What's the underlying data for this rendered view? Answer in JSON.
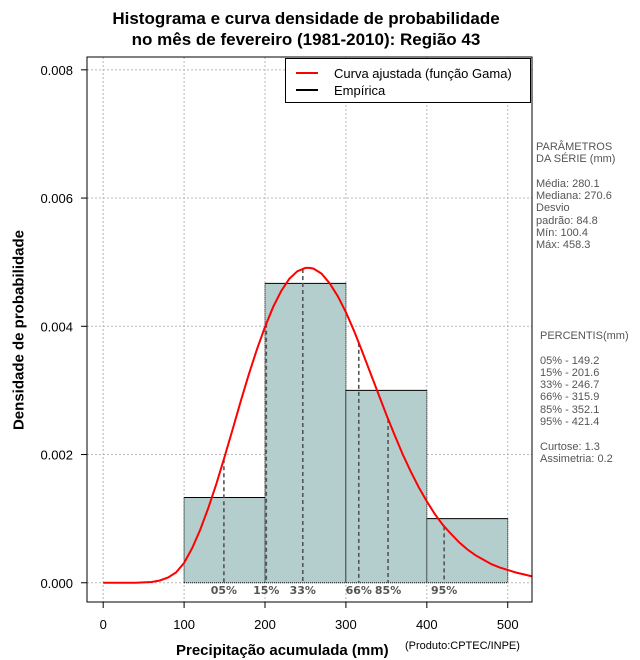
{
  "chart_data": {
    "type": "histogram",
    "title": [
      "Histograma e curva densidade de probabilidade",
      "no mês de fevereiro (1981-2010): Região 43"
    ],
    "xlabel": "Precipitação acumulada (mm)",
    "ylabel": "Densidade de probabilidade",
    "credit": "(Produto:CPTEC/INPE)",
    "xlim": [
      -20,
      530
    ],
    "ylim": [
      -0.0003,
      0.0082
    ],
    "xticks": [
      0,
      100,
      200,
      300,
      400,
      500
    ],
    "xtick_labels": [
      "0",
      "100",
      "200",
      "300",
      "400",
      "500"
    ],
    "yticks": [
      0,
      0.002,
      0.004,
      0.006,
      0.008
    ],
    "ytick_labels": [
      "0.000",
      "0.002",
      "0.004",
      "0.006",
      "0.008"
    ],
    "grid": true,
    "bins": [
      {
        "x0": 100,
        "x1": 200,
        "density": 0.00133
      },
      {
        "x0": 200,
        "x1": 300,
        "density": 0.00467
      },
      {
        "x0": 300,
        "x1": 400,
        "density": 0.003
      },
      {
        "x0": 400,
        "x1": 500,
        "density": 0.001
      }
    ],
    "bar_color": "#b4cecd",
    "curve": {
      "name": "Curva ajustada (função Gama)",
      "color": "#ff0000",
      "points": [
        [
          0,
          0
        ],
        [
          40,
          5e-07
        ],
        [
          60,
          1.2e-05
        ],
        [
          70,
          3.5e-05
        ],
        [
          80,
          8e-05
        ],
        [
          90,
          0.00016
        ],
        [
          100,
          0.00031
        ],
        [
          110,
          0.00054
        ],
        [
          120,
          0.00083
        ],
        [
          130,
          0.00117
        ],
        [
          140,
          0.00155
        ],
        [
          150,
          0.00196
        ],
        [
          160,
          0.00239
        ],
        [
          170,
          0.00283
        ],
        [
          180,
          0.00325
        ],
        [
          190,
          0.00364
        ],
        [
          200,
          0.00399
        ],
        [
          210,
          0.0043
        ],
        [
          220,
          0.00455
        ],
        [
          230,
          0.00474
        ],
        [
          240,
          0.00486
        ],
        [
          250,
          0.00491
        ],
        [
          255,
          0.00491
        ],
        [
          260,
          0.0049
        ],
        [
          270,
          0.00482
        ],
        [
          280,
          0.00467
        ],
        [
          290,
          0.00447
        ],
        [
          300,
          0.00422
        ],
        [
          310,
          0.00393
        ],
        [
          320,
          0.00361
        ],
        [
          330,
          0.00328
        ],
        [
          340,
          0.00295
        ],
        [
          350,
          0.00262
        ],
        [
          360,
          0.00231
        ],
        [
          370,
          0.00201
        ],
        [
          380,
          0.00174
        ],
        [
          390,
          0.00149
        ],
        [
          400,
          0.00127
        ],
        [
          410,
          0.00107
        ],
        [
          420,
          0.0009
        ],
        [
          430,
          0.00076
        ],
        [
          440,
          0.00063
        ],
        [
          450,
          0.00052
        ],
        [
          460,
          0.00043
        ],
        [
          470,
          0.00036
        ],
        [
          480,
          0.00029
        ],
        [
          490,
          0.00024
        ],
        [
          500,
          0.0002
        ],
        [
          510,
          0.00016
        ],
        [
          520,
          0.00013
        ],
        [
          530,
          0.0001
        ]
      ]
    },
    "empirical": {
      "name": "Empírica",
      "color": "#000000"
    },
    "percentiles": [
      {
        "label": "05%",
        "value": 149.2
      },
      {
        "label": "15%",
        "value": 201.6
      },
      {
        "label": "33%",
        "value": 246.7
      },
      {
        "label": "66%",
        "value": 315.9
      },
      {
        "label": "85%",
        "value": 352.1
      },
      {
        "label": "95%",
        "value": 421.4
      }
    ],
    "legend_position": "top-right"
  },
  "side_panel": {
    "params_lines": [
      "PARÂMETROS",
      " DA SÉRIE (mm)",
      "",
      "Média:  280.1",
      "Mediana:  270.6",
      "Desvio",
      "padrão:  84.8",
      "Mín:  100.4",
      "Máx:  458.3"
    ],
    "pct_lines": [
      "PERCENTIS(mm)",
      "",
      "05% -  149.2",
      "15% -  201.6",
      "33% -  246.7",
      "66% -  315.9",
      "85% -  352.1",
      "95% -  421.4",
      "",
      "Curtose:  1.3",
      "Assimetria:  0.2"
    ]
  }
}
